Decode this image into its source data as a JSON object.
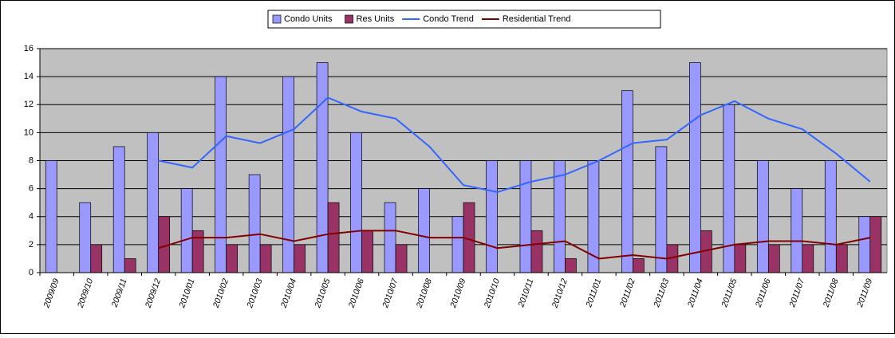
{
  "chart_data": {
    "type": "bar",
    "categories": [
      "2009/09",
      "2009/10",
      "2009/11",
      "2009/12",
      "2010/01",
      "2010/02",
      "2010/03",
      "2010/04",
      "2010/05",
      "2010/06",
      "2010/07",
      "2010/08",
      "2010/09",
      "2010/10",
      "2010/11",
      "2010/12",
      "2011/01",
      "2011/02",
      "2011/03",
      "2011/04",
      "2011/05",
      "2011/06",
      "2011/07",
      "2011/08",
      "2011/09"
    ],
    "series": [
      {
        "name": "Condo Units",
        "type": "bar",
        "color": "#9999ff",
        "values": [
          8,
          5,
          9,
          10,
          6,
          14,
          7,
          14,
          15,
          10,
          5,
          6,
          4,
          8,
          8,
          8,
          8,
          13,
          9,
          15,
          12,
          8,
          6,
          8,
          4
        ]
      },
      {
        "name": "Res Units",
        "type": "bar",
        "color": "#993366",
        "values": [
          0,
          2,
          1,
          4,
          3,
          2,
          2,
          2,
          5,
          3,
          2,
          0,
          5,
          0,
          3,
          1,
          0,
          1,
          2,
          3,
          2,
          2,
          2,
          2,
          4
        ]
      },
      {
        "name": "Condo Trend",
        "type": "line",
        "color": "#3366ff",
        "values": [
          null,
          null,
          null,
          8,
          7.5,
          9.75,
          9.25,
          10.25,
          12.5,
          11.5,
          11,
          9,
          6.25,
          5.75,
          6.5,
          7,
          8,
          9.25,
          9.5,
          11.25,
          12.25,
          11,
          10.25,
          8.5,
          6.5
        ]
      },
      {
        "name": "Residential Trend",
        "type": "line",
        "color": "#800000",
        "values": [
          null,
          null,
          null,
          1.75,
          2.5,
          2.5,
          2.75,
          2.25,
          2.75,
          3,
          3,
          2.5,
          2.5,
          1.75,
          2,
          2.25,
          1,
          1.25,
          1,
          1.5,
          2,
          2.25,
          2.25,
          2,
          2.5
        ]
      }
    ],
    "ylim": [
      0,
      16
    ],
    "yticks": [
      0,
      2,
      4,
      6,
      8,
      10,
      12,
      14,
      16
    ],
    "grid": true,
    "legend": "top"
  }
}
